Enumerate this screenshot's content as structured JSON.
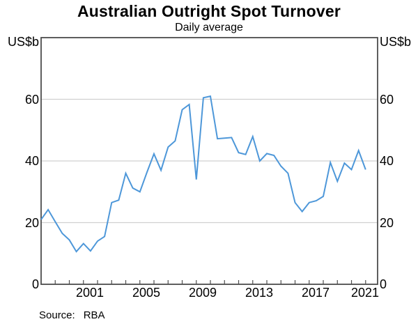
{
  "header": {
    "title": "Australian Outright Spot Turnover",
    "subtitle": "Daily average"
  },
  "axes": {
    "left_unit": "US$b",
    "right_unit": "US$b",
    "y_ticks": [
      0,
      20,
      40,
      60
    ],
    "y_axis_max": 80,
    "x_labels": [
      2001,
      2005,
      2009,
      2013,
      2017,
      2021
    ],
    "year_ticks": [
      1999,
      2000,
      2001,
      2002,
      2003,
      2004,
      2005,
      2006,
      2007,
      2008,
      2009,
      2010,
      2011,
      2012,
      2013,
      2014,
      2015,
      2016,
      2017,
      2018,
      2019,
      2020,
      2021
    ]
  },
  "source": {
    "label": "Source:",
    "value": "RBA"
  },
  "colors": {
    "line": "#4d97d9",
    "grid": "#d0d0d0",
    "axis": "#4d4d4d",
    "text": "#000000"
  },
  "chart_data": {
    "type": "line",
    "title": "Australian Outright Spot Turnover",
    "subtitle": "Daily average",
    "ylabel": "US$b",
    "xlabel": "",
    "xlim": [
      1998,
      2021.85
    ],
    "ylim": [
      0,
      80
    ],
    "grid": "horizontal gridlines at 20, 40, 60",
    "legend": "none",
    "source": "RBA",
    "series": [
      {
        "name": "Australian outright spot turnover, daily average (US$b)",
        "points": [
          [
            1998,
            21.0
          ],
          [
            1998.5,
            24.2
          ],
          [
            1999,
            20.3
          ],
          [
            1999.5,
            16.5
          ],
          [
            2000,
            14.4
          ],
          [
            2000.5,
            10.6
          ],
          [
            2001,
            13.2
          ],
          [
            2001.5,
            10.8
          ],
          [
            2002,
            14.0
          ],
          [
            2002.5,
            15.5
          ],
          [
            2003,
            26.5
          ],
          [
            2003.5,
            27.3
          ],
          [
            2004,
            36.0
          ],
          [
            2004.5,
            31.2
          ],
          [
            2005,
            30.0
          ],
          [
            2005.5,
            36.3
          ],
          [
            2006,
            42.3
          ],
          [
            2006.5,
            37.0
          ],
          [
            2007,
            44.5
          ],
          [
            2007.5,
            46.5
          ],
          [
            2008,
            56.6
          ],
          [
            2008.5,
            58.3
          ],
          [
            2009,
            34.0
          ],
          [
            2009.5,
            60.5
          ],
          [
            2010,
            61.0
          ],
          [
            2010.5,
            47.2
          ],
          [
            2011,
            47.4
          ],
          [
            2011.5,
            47.6
          ],
          [
            2012,
            42.7
          ],
          [
            2012.5,
            42.1
          ],
          [
            2013,
            47.9
          ],
          [
            2013.5,
            40.0
          ],
          [
            2014,
            42.4
          ],
          [
            2014.5,
            41.8
          ],
          [
            2015,
            38.3
          ],
          [
            2015.5,
            36.0
          ],
          [
            2016,
            26.5
          ],
          [
            2016.5,
            23.6
          ],
          [
            2017,
            26.5
          ],
          [
            2017.5,
            27.1
          ],
          [
            2018,
            28.5
          ],
          [
            2018.5,
            39.5
          ],
          [
            2019,
            33.4
          ],
          [
            2019.5,
            39.3
          ],
          [
            2020,
            37.2
          ],
          [
            2020.5,
            43.4
          ],
          [
            2021,
            37.2
          ]
        ]
      }
    ]
  }
}
